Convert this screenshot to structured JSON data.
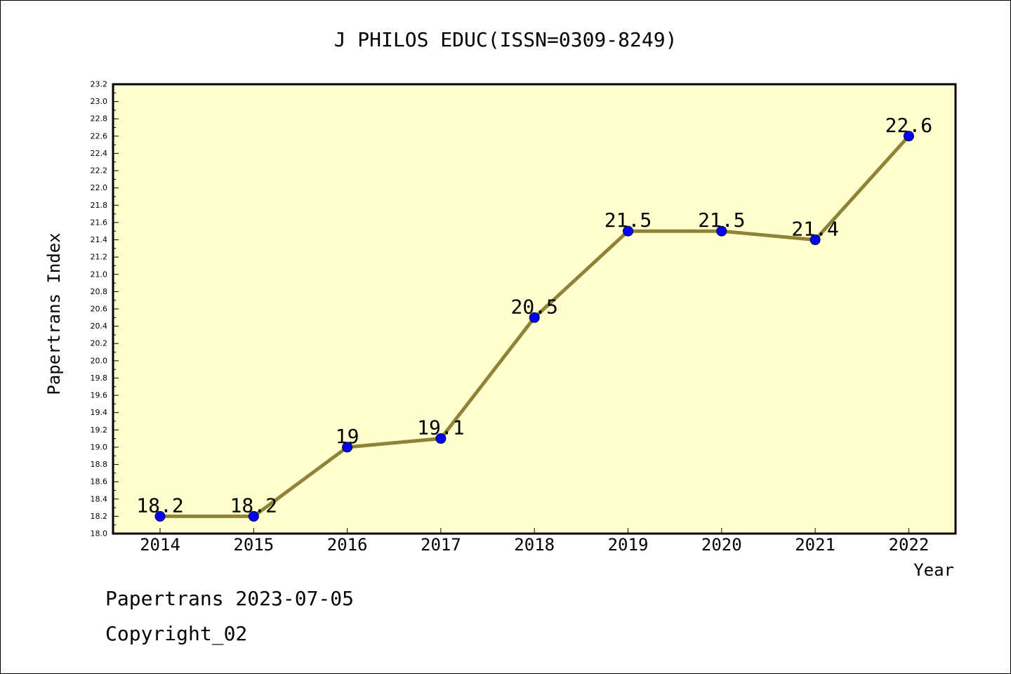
{
  "footer": {
    "line1": "Papertrans 2023-07-05",
    "line2": "Copyright_02"
  },
  "chart_data": {
    "type": "line",
    "title": "J PHILOS EDUC(ISSN=0309-8249)",
    "xlabel": "Year",
    "ylabel": "Papertrans Index",
    "categories": [
      "2014",
      "2015",
      "2016",
      "2017",
      "2018",
      "2019",
      "2020",
      "2021",
      "2022"
    ],
    "series": [
      {
        "values": [
          18.2,
          18.2,
          19.0,
          19.1,
          20.5,
          21.5,
          21.5,
          21.4,
          22.6
        ],
        "data_labels": [
          "18.2",
          "18.2",
          "19",
          "19.1",
          "20.5",
          "21.5",
          "21.5",
          "21.4",
          "22.6"
        ]
      }
    ],
    "ylim": [
      18.0,
      23.2
    ],
    "yticks": [
      "18.0",
      "18.2",
      "18.4",
      "18.6",
      "18.8",
      "19.0",
      "19.2",
      "19.4",
      "19.6",
      "19.8",
      "20.0",
      "20.2",
      "20.4",
      "20.6",
      "20.8",
      "21.0",
      "21.2",
      "21.4",
      "21.6",
      "21.8",
      "22.0",
      "22.2",
      "22.4",
      "22.6",
      "22.8",
      "23.0",
      "23.2"
    ],
    "grid": false,
    "colors": {
      "plot_background": "#ffffd0",
      "line": "#8f8436",
      "marker": "#0000ff"
    }
  }
}
